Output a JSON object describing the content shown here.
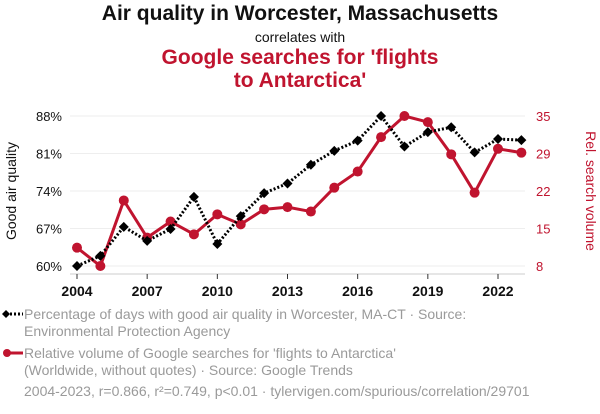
{
  "chart_data": {
    "type": "line",
    "title": "Air quality in Worcester, Massachusetts",
    "subtitle": "correlates with",
    "title2_lines": [
      "Google searches for 'flights",
      "to Antarctica'"
    ],
    "x": [
      2004,
      2005,
      2006,
      2007,
      2008,
      2009,
      2010,
      2011,
      2012,
      2013,
      2014,
      2015,
      2016,
      2017,
      2018,
      2019,
      2020,
      2021,
      2022,
      2023
    ],
    "x_ticks": [
      "2004",
      "2007",
      "2010",
      "2013",
      "2016",
      "2019",
      "2022"
    ],
    "ylabel": "Good air quality",
    "y2label": "Rel. search volume",
    "y_ticks": [
      "88%",
      "81%",
      "74%",
      "67%",
      "60%"
    ],
    "y2_ticks": [
      "35",
      "29",
      "22",
      "15",
      "8"
    ],
    "ylim": [
      60,
      88
    ],
    "y2lim": [
      8,
      35
    ],
    "grid": true,
    "series": [
      {
        "name": "Percentage of days with good air quality in Worcester, MA-CT",
        "axis": "left",
        "color": "#000000",
        "style": "dotted",
        "marker": "diamond",
        "values": [
          60.0,
          61.9,
          67.3,
          64.7,
          66.9,
          72.9,
          64.1,
          69.3,
          73.6,
          75.4,
          78.9,
          81.5,
          83.4,
          88.0,
          82.3,
          85.0,
          85.9,
          81.2,
          83.7,
          83.5
        ]
      },
      {
        "name": "Relative volume of Google searches for 'flights to Antarctica'",
        "axis": "right",
        "color": "#c0142f",
        "style": "solid",
        "marker": "circle",
        "values": [
          11.3,
          8.0,
          19.8,
          13.1,
          16.0,
          13.7,
          17.3,
          15.5,
          18.2,
          18.6,
          17.8,
          22.1,
          25.0,
          31.2,
          35.0,
          33.9,
          28.1,
          21.2,
          29.1,
          28.4
        ]
      }
    ]
  },
  "legend": {
    "item1_line1": "Percentage of days with good air quality in Worcester, MA-CT · Source:",
    "item1_line2": "Environmental Protection Agency",
    "item2_line1": "Relative volume of Google searches for 'flights to Antarctica'",
    "item2_line2": "(Worldwide, without quotes) · Source: Google Trends"
  },
  "footer": "2004-2023, r=0.866, r²=0.749, p<0.01 · tylervigen.com/spurious/correlation/29701"
}
